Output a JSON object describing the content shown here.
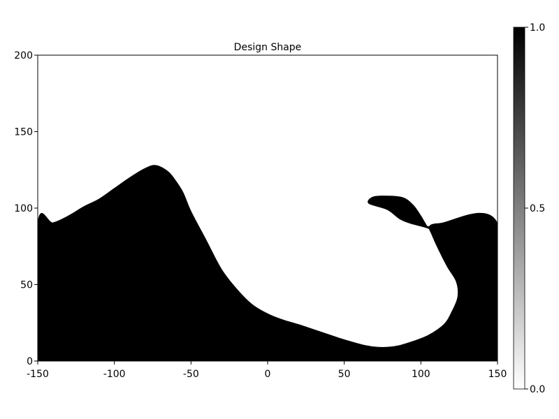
{
  "chart_data": {
    "type": "heatmap",
    "title": "Design Shape",
    "xlabel": "",
    "ylabel": "",
    "xlim": [
      -150,
      150
    ],
    "ylim": [
      0,
      200
    ],
    "x_ticks": [
      {
        "value": -150,
        "label": "-150"
      },
      {
        "value": -100,
        "label": "-100"
      },
      {
        "value": -50,
        "label": "-50"
      },
      {
        "value": 0,
        "label": "0"
      },
      {
        "value": 50,
        "label": "50"
      },
      {
        "value": 100,
        "label": "100"
      },
      {
        "value": 150,
        "label": "150"
      }
    ],
    "y_ticks": [
      {
        "value": 0,
        "label": "0"
      },
      {
        "value": 50,
        "label": "50"
      },
      {
        "value": 100,
        "label": "100"
      },
      {
        "value": 150,
        "label": "150"
      },
      {
        "value": 200,
        "label": "200"
      }
    ],
    "colorbar": {
      "range": [
        0.0,
        1.0
      ],
      "ticks": [
        {
          "value": 0.0,
          "label": "0.0"
        },
        {
          "value": 0.5,
          "label": "0.5"
        },
        {
          "value": 1.0,
          "label": "1.0"
        }
      ],
      "colormap": "white-to-black"
    },
    "grid": false,
    "fill_value": 1.0,
    "shape_outline": [
      [
        -150,
        0
      ],
      [
        -150,
        90
      ],
      [
        -140,
        90.5
      ],
      [
        -130,
        95
      ],
      [
        -120,
        101
      ],
      [
        -110,
        106
      ],
      [
        -100,
        113
      ],
      [
        -90,
        120
      ],
      [
        -80,
        126
      ],
      [
        -73,
        128
      ],
      [
        -65,
        124
      ],
      [
        -60,
        118
      ],
      [
        -55,
        110
      ],
      [
        -50,
        98
      ],
      [
        -40,
        79
      ],
      [
        -30,
        60
      ],
      [
        -20,
        47
      ],
      [
        -10,
        37
      ],
      [
        0,
        31
      ],
      [
        10,
        27
      ],
      [
        20,
        24
      ],
      [
        35,
        19
      ],
      [
        50,
        14
      ],
      [
        65,
        10
      ],
      [
        75,
        9
      ],
      [
        85,
        10
      ],
      [
        95,
        13
      ],
      [
        105,
        17
      ],
      [
        115,
        24
      ],
      [
        120,
        32
      ],
      [
        124,
        42
      ],
      [
        123,
        52
      ],
      [
        117,
        62
      ],
      [
        110,
        76
      ],
      [
        106,
        85
      ],
      [
        104,
        87
      ],
      [
        93,
        90
      ],
      [
        86,
        93
      ],
      [
        78,
        99
      ],
      [
        66,
        103
      ],
      [
        68,
        107
      ],
      [
        75,
        108
      ],
      [
        88,
        107
      ],
      [
        95,
        102
      ],
      [
        100,
        95
      ],
      [
        103,
        90
      ],
      [
        105,
        88
      ],
      [
        112,
        90
      ],
      [
        150,
        90
      ],
      [
        150,
        0
      ]
    ]
  }
}
